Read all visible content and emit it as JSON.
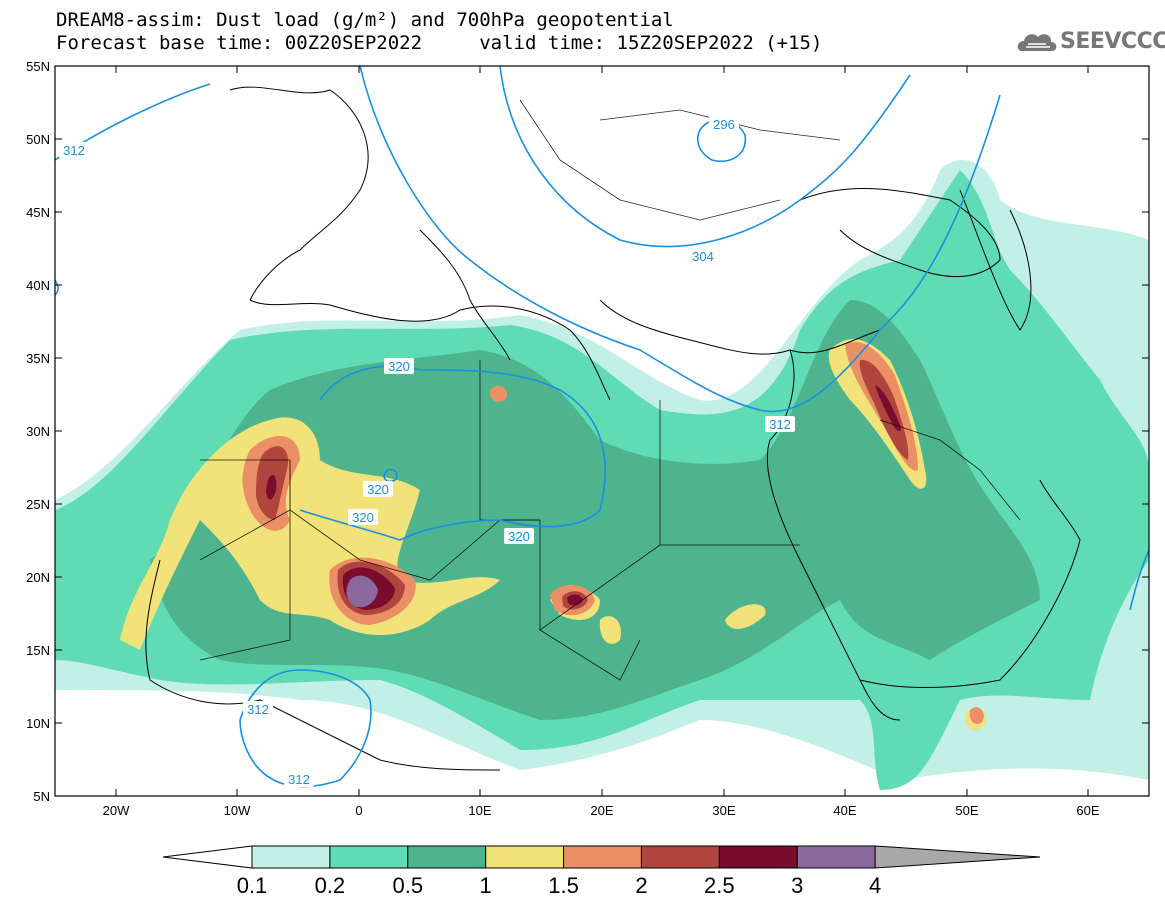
{
  "header": {
    "title_line1": "DREAM8-assim: Dust load (g/m²) and 700hPa geopotential",
    "title_line2": "Forecast base time: 00Z20SEP2022     valid time: 15Z20SEP2022 (+15)",
    "logo_text": "SEEVCCC"
  },
  "map": {
    "lon_labels": [
      "20W",
      "10W",
      "0",
      "10E",
      "20E",
      "30E",
      "40E",
      "50E",
      "60E"
    ],
    "lat_labels": [
      "55N",
      "50N",
      "45N",
      "40N",
      "35N",
      "30N",
      "25N",
      "20N",
      "15N",
      "10N",
      "5N"
    ],
    "contour_labels": [
      "312",
      "296",
      "304",
      "320",
      "320",
      "320",
      "320",
      "312",
      "312",
      "312"
    ]
  },
  "colorbar": {
    "ticks": [
      "0.1",
      "0.2",
      "0.5",
      "1",
      "1.5",
      "2",
      "2.5",
      "3",
      "4"
    ],
    "colors": [
      "#c2f0e6",
      "#5fdcb4",
      "#4db48e",
      "#f2e27a",
      "#eb9066",
      "#b0453d",
      "#7a0c2e",
      "#8a6a9e",
      "#a8a8a8"
    ]
  },
  "colors": {
    "contour_line": "#1a8fe0",
    "contour_label": "#1a8fe0"
  }
}
